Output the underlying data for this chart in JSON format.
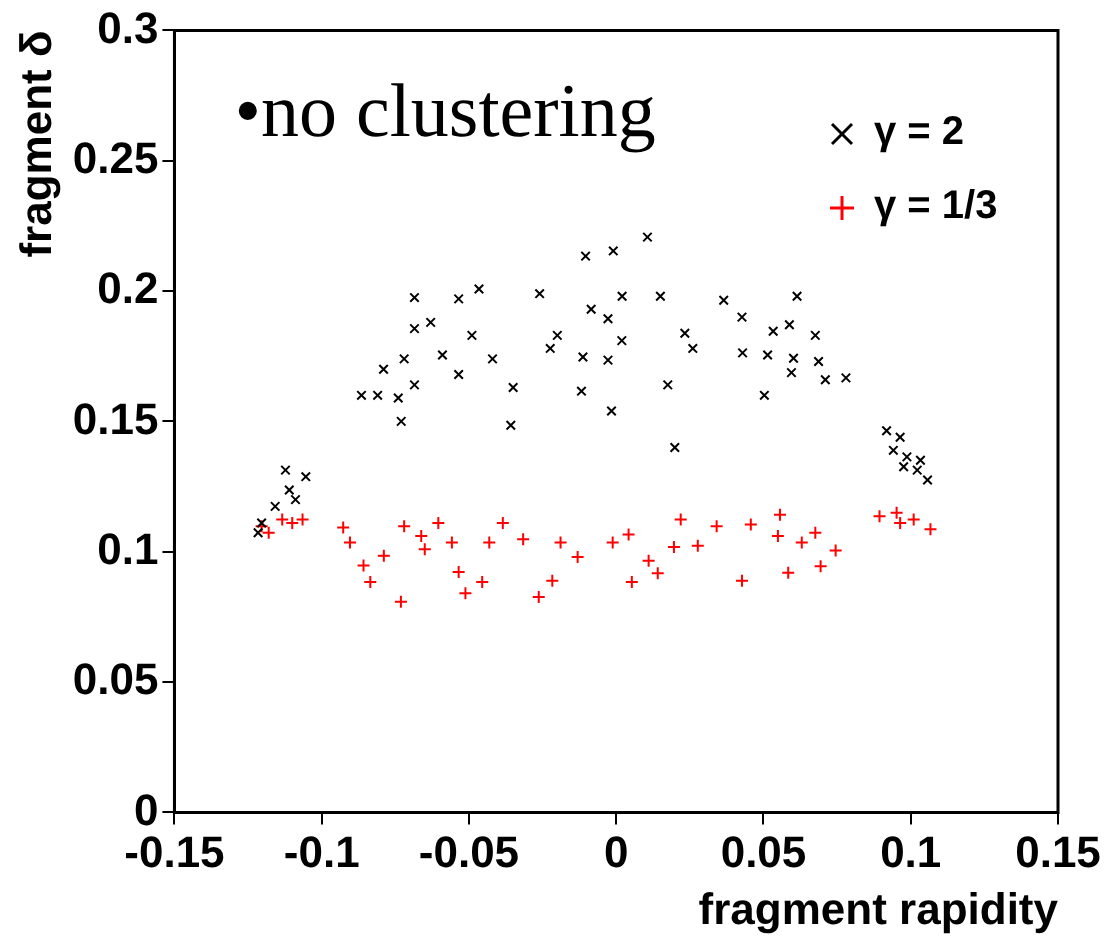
{
  "chart_data": {
    "type": "scatter",
    "xlabel": "fragment rapidity",
    "ylabel": "fragment δ",
    "xlim": [
      -0.15,
      0.15
    ],
    "xticks": [
      -0.15,
      -0.1,
      -0.05,
      0,
      0.05,
      0.1,
      0.15
    ],
    "ylim": [
      0,
      0.3
    ],
    "yticks": [
      0,
      0.05,
      0.1,
      0.15,
      0.2,
      0.25,
      0.3
    ],
    "grid": false,
    "legend": "top right",
    "annotations": [
      "•no clustering"
    ],
    "series": [
      {
        "name": "γ = 2",
        "color": "#000000",
        "marker": "cross",
        "x": [
          -0.0865,
          -0.081,
          -0.073,
          -0.0685,
          -0.0535,
          -0.0466,
          -0.026,
          -0.0104,
          -0.001,
          0.0106,
          0.002,
          0.015,
          -0.0016,
          0.0199,
          0.0175,
          -0.0118,
          0.0365,
          0.0427,
          0.0503,
          0.0614,
          0.078,
          0.071,
          0.0595,
          0.0676,
          -0.0358,
          -0.035,
          -0.079,
          -0.072,
          -0.059,
          -0.049,
          -0.042,
          -0.0224,
          -0.02,
          -0.0085,
          -0.0028,
          0.0019,
          -0.0113,
          -0.0028,
          0.0233,
          0.026,
          0.0429,
          0.0514,
          0.0533,
          0.0588,
          0.0687,
          0.0602,
          -0.0685,
          -0.074,
          -0.0535,
          -0.063,
          -0.0685,
          -0.1123,
          -0.1054,
          -0.111,
          -0.1158,
          -0.1204,
          -0.1216,
          -0.1089,
          0.0918,
          0.0964,
          0.0987,
          0.1022,
          0.1057,
          0.0941,
          0.0976,
          0.1033
        ],
        "values": [
          0.16,
          0.16,
          0.15,
          0.1975,
          0.197,
          0.2008,
          0.199,
          0.2134,
          0.2154,
          0.2207,
          0.198,
          0.198,
          0.154,
          0.14,
          0.164,
          0.1616,
          0.1965,
          0.19,
          0.16,
          0.198,
          0.1667,
          0.166,
          0.1687,
          0.183,
          0.1485,
          0.163,
          0.17,
          0.174,
          0.1755,
          0.183,
          0.174,
          0.178,
          0.183,
          0.193,
          0.1894,
          0.181,
          0.1747,
          0.1735,
          0.1838,
          0.178,
          0.1763,
          0.1755,
          0.1846,
          0.1871,
          0.173,
          0.1742,
          0.164,
          0.159,
          0.168,
          0.188,
          0.1856,
          0.1313,
          0.1288,
          0.1237,
          0.1174,
          0.111,
          0.1073,
          0.12,
          0.1464,
          0.1439,
          0.1364,
          0.1313,
          0.1275,
          0.1389,
          0.1326,
          0.1351
        ]
      },
      {
        "name": "γ = 1/3",
        "color": "#ff0000",
        "marker": "plus",
        "x": [
          -0.0927,
          -0.0904,
          -0.0858,
          -0.0835,
          -0.0731,
          -0.072,
          -0.065,
          -0.0604,
          -0.0535,
          -0.0512,
          -0.0455,
          -0.0385,
          -0.0316,
          -0.0263,
          -0.0217,
          -0.0189,
          -0.0131,
          -0.0012,
          0.0042,
          0.0053,
          0.011,
          0.0141,
          0.0196,
          0.0219,
          0.0277,
          0.0341,
          0.0427,
          0.0457,
          0.0556,
          0.0584,
          0.063,
          0.0694,
          0.0745,
          -0.0662,
          -0.0789,
          -0.0558,
          -0.0431,
          0.0549,
          0.0676,
          -0.1204,
          -0.1134,
          -0.1065,
          -0.118,
          -0.11,
          0.0894,
          0.0952,
          0.101,
          0.1067,
          0.0964
        ],
        "values": [
          0.1093,
          0.1035,
          0.0947,
          0.0884,
          0.0808,
          0.1098,
          0.101,
          0.111,
          0.0922,
          0.0841,
          0.0884,
          0.111,
          0.1048,
          0.0826,
          0.0889,
          0.1035,
          0.098,
          0.1035,
          0.1066,
          0.0884,
          0.0965,
          0.0917,
          0.1018,
          0.1124,
          0.1023,
          0.1098,
          0.0889,
          0.1104,
          0.1142,
          0.0919,
          0.1035,
          0.0944,
          0.1005,
          0.106,
          0.0985,
          0.1035,
          0.1035,
          0.106,
          0.1073,
          0.1098,
          0.1124,
          0.1124,
          0.1073,
          0.111,
          0.1136,
          0.115,
          0.1124,
          0.1086,
          0.111
        ]
      }
    ]
  }
}
